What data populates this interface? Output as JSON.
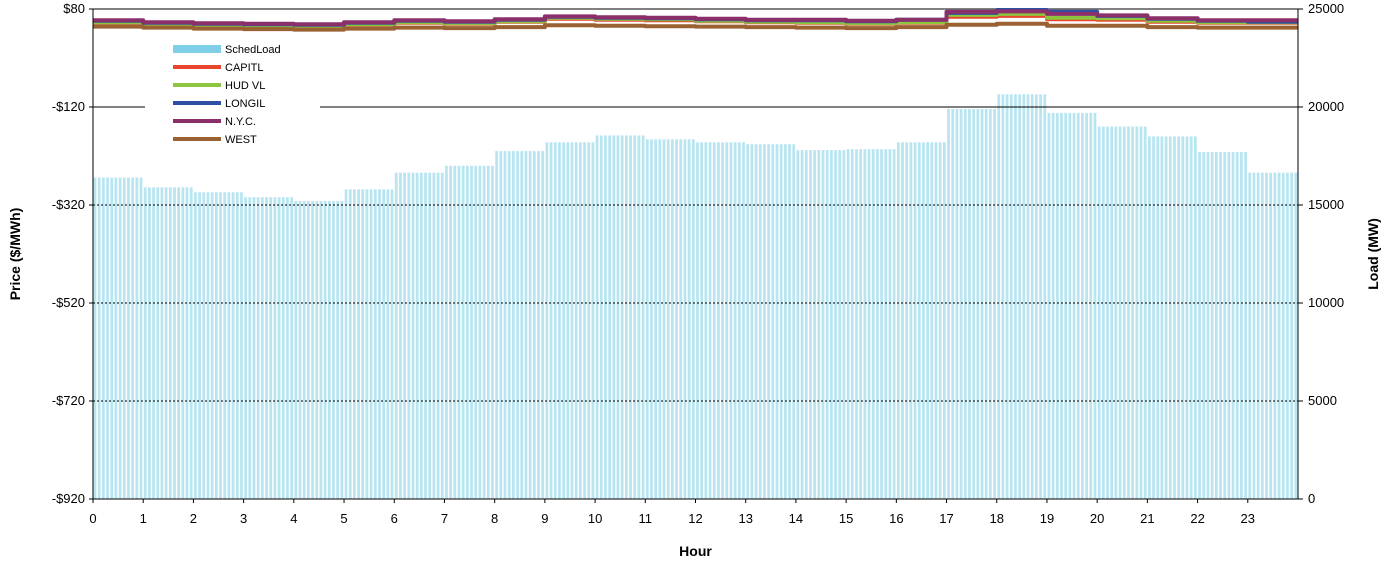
{
  "chart_data": {
    "type": "bar+line",
    "title": "",
    "xlabel": "Hour",
    "ylabel_left": "Price ($/MWh)",
    "ylabel_right": "Load (MW)",
    "ylim_left": [
      -920,
      80
    ],
    "ylim_right": [
      0,
      25000
    ],
    "left_ticks": [
      "$80",
      "-$120",
      "-$320",
      "-$520",
      "-$720",
      "-$920"
    ],
    "left_tick_values": [
      80,
      -120,
      -320,
      -520,
      -720,
      -920
    ],
    "right_ticks": [
      "25000",
      "20000",
      "15000",
      "10000",
      "5000",
      "0"
    ],
    "right_tick_values": [
      25000,
      20000,
      15000,
      10000,
      5000,
      0
    ],
    "x_ticks": [
      "0",
      "1",
      "2",
      "3",
      "4",
      "5",
      "6",
      "7",
      "8",
      "9",
      "10",
      "11",
      "12",
      "13",
      "14",
      "15",
      "16",
      "17",
      "18",
      "19",
      "20",
      "21",
      "22",
      "23"
    ],
    "x_range": [
      0,
      24
    ],
    "load": {
      "name": "SchedLoad",
      "color": "#7fd0e6",
      "hours": [
        0,
        1,
        2,
        3,
        4,
        5,
        6,
        7,
        8,
        9,
        10,
        11,
        12,
        13,
        14,
        15,
        16,
        17,
        18,
        19,
        20,
        21,
        22,
        23
      ],
      "values": [
        16400,
        15900,
        15650,
        15400,
        15200,
        15800,
        16650,
        17000,
        17750,
        18200,
        18550,
        18350,
        18200,
        18100,
        17800,
        17850,
        18200,
        19900,
        20650,
        19700,
        19000,
        18500,
        17700,
        16650
      ]
    },
    "series": [
      {
        "name": "CAPITL",
        "color": "#e8452c",
        "values": [
          52,
          48,
          46,
          45,
          44,
          48,
          52,
          50,
          54,
          60,
          58,
          57,
          55,
          53,
          52,
          50,
          52,
          64,
          66,
          59,
          58,
          54,
          52,
          52
        ]
      },
      {
        "name": "HUD VL",
        "color": "#8cc63f",
        "values": [
          53,
          49,
          47,
          46,
          45,
          49,
          53,
          51,
          55,
          62,
          60,
          59,
          56,
          54,
          53,
          51,
          53,
          68,
          70,
          62,
          61,
          56,
          53,
          53
        ]
      },
      {
        "name": "LONGIL",
        "color": "#2e4fa3",
        "values": [
          56,
          52,
          50,
          49,
          48,
          52,
          56,
          54,
          58,
          64,
          62,
          61,
          59,
          57,
          57,
          55,
          58,
          72,
          78,
          74,
          66,
          60,
          56,
          54
        ]
      },
      {
        "name": "N.Y.C.",
        "color": "#8b2f6b",
        "values": [
          57,
          53,
          51,
          50,
          49,
          53,
          57,
          55,
          59,
          65,
          63,
          62,
          60,
          58,
          58,
          56,
          58,
          74,
          75,
          70,
          67,
          61,
          57,
          57
        ]
      },
      {
        "name": "WEST",
        "color": "#9a6232",
        "values": [
          44,
          42,
          40,
          39,
          38,
          40,
          42,
          41,
          43,
          47,
          46,
          45,
          44,
          43,
          42,
          41,
          43,
          48,
          50,
          46,
          46,
          43,
          42,
          42
        ]
      }
    ],
    "legend_position": "top-left",
    "grid": true
  }
}
